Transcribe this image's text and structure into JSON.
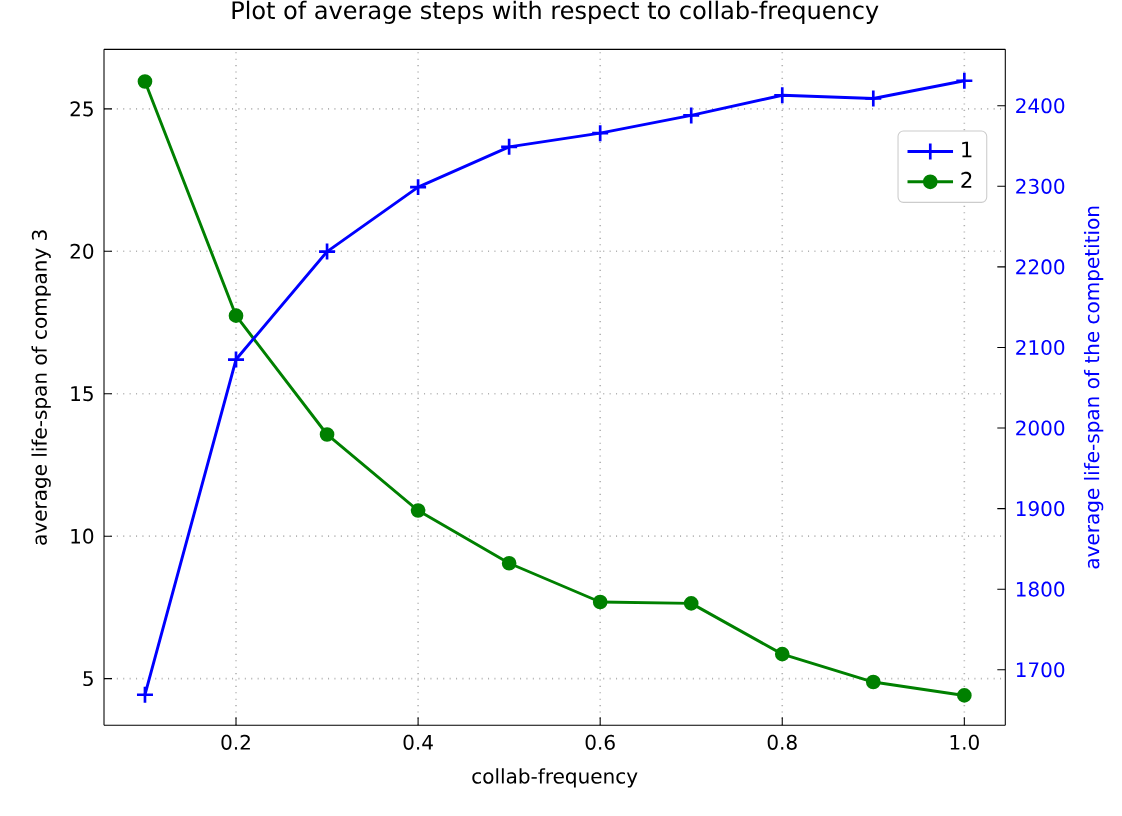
{
  "chart_data": {
    "type": "line",
    "title": "Plot of average steps with respect to collab-frequency",
    "xlabel": "collab-frequency",
    "ylabel": "average life-span of company 3",
    "y2label": "average life-span of the competition",
    "x": [
      0.1,
      0.2,
      0.3,
      0.4,
      0.5,
      0.6,
      0.7,
      0.8,
      0.9,
      1.0
    ],
    "series": [
      {
        "name": "1",
        "color": "#0000ff",
        "axis": "y2",
        "marker": "cross",
        "values": [
          1669,
          2085,
          2219,
          2299,
          2349,
          2366,
          2388,
          2413,
          2409,
          2431
        ]
      },
      {
        "name": "2",
        "color": "#008000",
        "axis": "y",
        "marker": "circle",
        "values": [
          25.96,
          17.74,
          13.57,
          10.9,
          9.05,
          7.69,
          7.64,
          5.86,
          4.88,
          4.41
        ]
      }
    ],
    "xlim": [
      0.055,
      1.045
    ],
    "xticks": [
      0.2,
      0.4,
      0.6,
      0.8,
      {
        "value": 1.0,
        "label": "1.0"
      }
    ],
    "ylim": [
      3.36,
      27.09
    ],
    "yticks": [
      5,
      10,
      15,
      20,
      25
    ],
    "y2lim": [
      1631,
      2470
    ],
    "y2ticks": [
      1700,
      1800,
      1900,
      2000,
      2100,
      2200,
      2300,
      2400
    ],
    "grid": true,
    "legend": "top right"
  }
}
